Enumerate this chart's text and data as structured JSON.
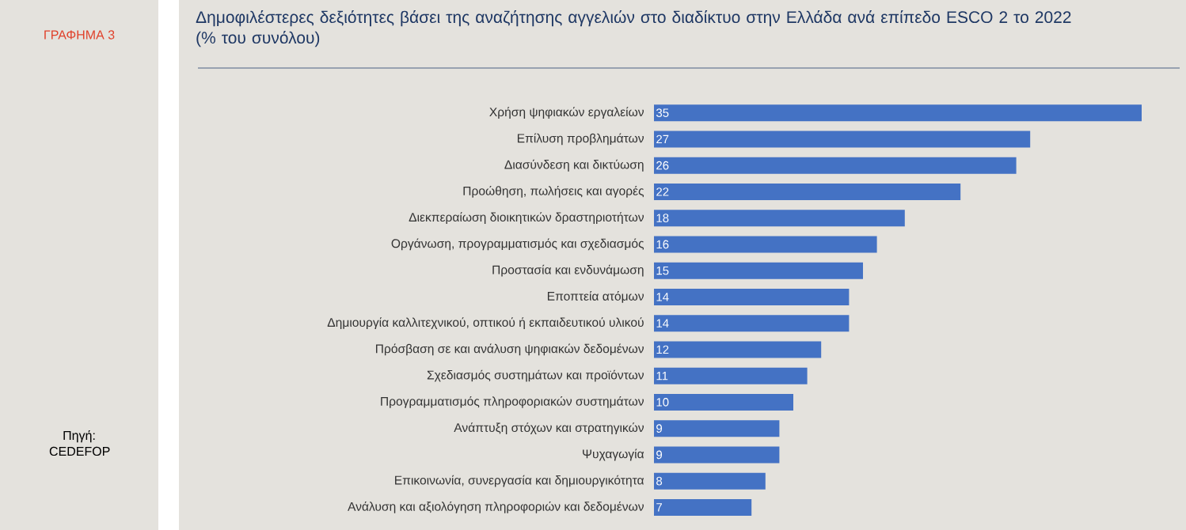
{
  "chart_data": {
    "type": "bar",
    "orientation": "horizontal",
    "title": "Δημοφιλέστερες  δεξιότητες βάσει της αναζήτησης αγγελιών στο διαδίκτυο στην Ελλάδα ανά επίπεδο ESCO 2 το 2022 (% του συνόλου)",
    "categories": [
      "Χρήση ψηφιακών εργαλείων",
      "Επίλυση προβλημάτων",
      "Διασύνδεση και δικτύωση",
      "Προώθηση, πωλήσεις και αγορές",
      "Διεκπεραίωση διοικητικών δραστηριοτήτων",
      "Οργάνωση, προγραμματισμός και σχεδιασμός",
      "Προστασία και ενδυνάμωση",
      "Εποπτεία ατόμων",
      "Δημιουργία καλλιτεχνικού, οπτικού ή εκπαιδευτικού υλικού",
      "Πρόσβαση σε και ανάλυση ψηφιακών δεδομένων",
      "Σχεδιασμός συστημάτων και προϊόντων",
      "Προγραμματισμός πληροφοριακών συστημάτων",
      "Ανάπτυξη στόχων και στρατηγικών",
      "Ψυχαγωγία",
      "Επικοινωνία, συνεργασία και δημιουργικότητα",
      "Ανάλυση και αξιολόγηση πληροφοριών και δεδομένων"
    ],
    "values": [
      35,
      27,
      26,
      22,
      18,
      16,
      15,
      14,
      14,
      12,
      11,
      10,
      9,
      9,
      8,
      7
    ],
    "color": "#4472c4",
    "xlim": [
      0,
      35
    ],
    "data_labels": true,
    "annotations": [
      "ΓΡΑΦΗΜΑ 3",
      "Πηγή: CEDEFOP"
    ]
  }
}
